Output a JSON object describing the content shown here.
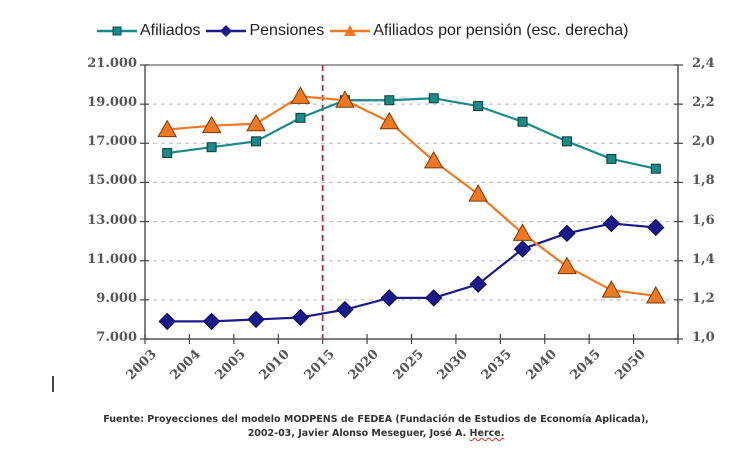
{
  "chart_data": {
    "type": "line",
    "title": "",
    "categories": [
      "2003",
      "2004",
      "2005",
      "2010",
      "2015",
      "2020",
      "2025",
      "2030",
      "2035",
      "2040",
      "2045",
      "2050"
    ],
    "series": [
      {
        "name": "Afiliados",
        "axis": "left",
        "color": "#1a8a88",
        "marker": "square",
        "values": [
          16500,
          16800,
          17100,
          18300,
          19200,
          19200,
          19300,
          18900,
          18100,
          17100,
          16200,
          15700
        ]
      },
      {
        "name": "Pensiones",
        "axis": "left",
        "color": "#1a1a8c",
        "marker": "diamond",
        "values": [
          7900,
          7900,
          8000,
          8100,
          8500,
          9100,
          9100,
          9800,
          11600,
          12400,
          12900,
          12700
        ]
      },
      {
        "name": "Afiliados por pensión (esc. derecha)",
        "axis": "right",
        "color": "#f07820",
        "marker": "triangle",
        "values": [
          2.07,
          2.09,
          2.1,
          2.24,
          2.22,
          2.11,
          1.91,
          1.74,
          1.54,
          1.37,
          1.25,
          1.22
        ]
      }
    ],
    "y_left": {
      "min": 7000,
      "max": 21000,
      "ticks": [
        7000,
        9000,
        11000,
        13000,
        15000,
        17000,
        19000,
        21000
      ],
      "tick_labels": [
        "7.000",
        "9.000",
        "11.000",
        "13.000",
        "15.000",
        "17.000",
        "19.000",
        "21.000"
      ]
    },
    "y_right": {
      "min": 1.0,
      "max": 2.4,
      "ticks": [
        1.0,
        1.2,
        1.4,
        1.6,
        1.8,
        2.0,
        2.2,
        2.4
      ],
      "tick_labels": [
        "1,0",
        "1,2",
        "1,4",
        "1,6",
        "1,8",
        "2,0",
        "2,2",
        "2,4"
      ]
    },
    "xlabel": "",
    "ylabel": "",
    "grid": "horizontal dashed",
    "legend_position": "top",
    "reference_line": {
      "type": "vertical dashed",
      "between": [
        "2010",
        "2015"
      ],
      "color": "#cc2244"
    }
  },
  "source": {
    "line1": "Fuente: Proyecciones  del modelo MODPENS de FEDEA (Fundación  de Estudios  de Economía  Aplicada),",
    "line2_prefix": "2002-03,  Javier Alonso Meseguer, José A. ",
    "line2_underlined": "Herce."
  }
}
